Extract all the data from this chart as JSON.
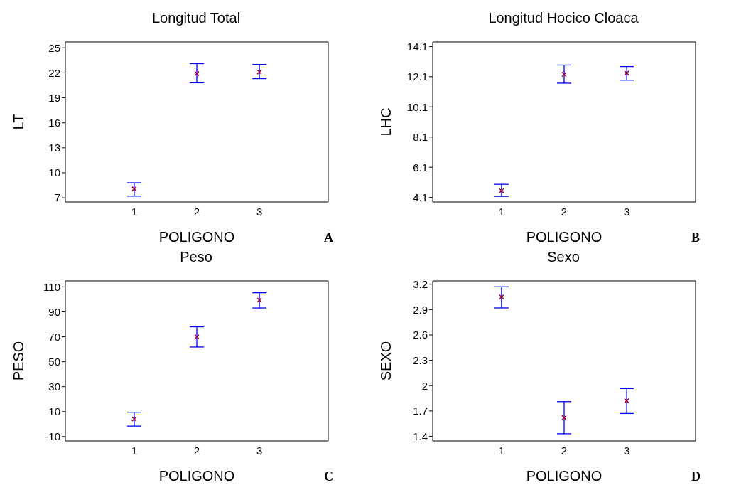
{
  "chart_data": [
    {
      "type": "scatter",
      "title": "Longitud Total",
      "xlabel": "POLIGONO",
      "ylabel": "LT",
      "annotations": [
        "A"
      ],
      "x": [
        1,
        2,
        3
      ],
      "xlim": [
        -0.1,
        4.1
      ],
      "xticks": [
        1,
        2,
        3
      ],
      "ylim": [
        6.5,
        25.7
      ],
      "yticks": [
        7,
        10,
        13,
        16,
        19,
        22,
        25
      ],
      "marker": "cross",
      "color": "#990033",
      "values": [
        8.07,
        21.9,
        22.1
      ],
      "errors": [
        [
          7.2,
          8.8
        ],
        [
          20.8,
          23.1
        ],
        [
          21.3,
          23.0
        ]
      ]
    },
    {
      "type": "scatter",
      "title": "Longitud Hocico Cloaca",
      "xlabel": "POLIGONO",
      "ylabel": "LHC",
      "annotations": [
        "B"
      ],
      "x": [
        1,
        2,
        3
      ],
      "xlim": [
        -0.1,
        4.1
      ],
      "xticks": [
        1,
        2,
        3
      ],
      "ylim": [
        3.8,
        14.4
      ],
      "yticks": [
        4.1,
        6.1,
        8.1,
        10.1,
        12.1,
        14.1
      ],
      "marker": "cross",
      "color": "#990033",
      "values": [
        4.54,
        12.26,
        12.34
      ],
      "errors": [
        [
          4.17,
          4.97
        ],
        [
          11.67,
          12.87
        ],
        [
          11.87,
          12.77
        ]
      ]
    },
    {
      "type": "scatter",
      "title": "Peso",
      "xlabel": "POLIGONO",
      "ylabel": "PESO",
      "annotations": [
        "C"
      ],
      "x": [
        1,
        2,
        3
      ],
      "xlim": [
        -0.1,
        4.1
      ],
      "xticks": [
        1,
        2,
        3
      ],
      "ylim": [
        -13.5,
        114.8
      ],
      "yticks": [
        -10,
        10,
        30,
        50,
        70,
        90,
        110
      ],
      "marker": "cross",
      "color": "#990033",
      "values": [
        4,
        70,
        99.4
      ],
      "errors": [
        [
          -1.6,
          9.5
        ],
        [
          61.8,
          78
        ],
        [
          93.1,
          105.3
        ]
      ]
    },
    {
      "type": "scatter",
      "title": "Sexo",
      "xlabel": "POLIGONO",
      "ylabel": "SEXO",
      "annotations": [
        "D"
      ],
      "x": [
        1,
        2,
        3
      ],
      "xlim": [
        -0.1,
        4.1
      ],
      "xticks": [
        1,
        2,
        3
      ],
      "ylim": [
        1.345,
        3.24
      ],
      "yticks": [
        1.4,
        1.7,
        2,
        2.3,
        2.6,
        2.9,
        3.2
      ],
      "marker": "cross",
      "color": "#990033",
      "values": [
        3.05,
        1.62,
        1.82
      ],
      "errors": [
        [
          2.92,
          3.17
        ],
        [
          1.43,
          1.81
        ],
        [
          1.67,
          1.965
        ]
      ]
    }
  ]
}
